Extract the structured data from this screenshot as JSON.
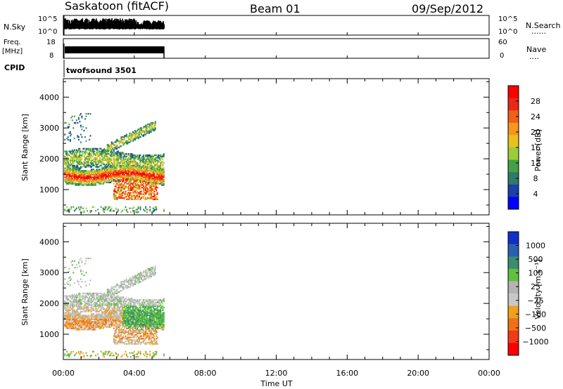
{
  "header": {
    "station": "Saskatoon (fitACF)",
    "beam": "Beam 01",
    "date": "09/Sep/2012"
  },
  "strips": {
    "nsky_label": "N.Sky",
    "nsky_ticks": [
      "10^5",
      "10^0"
    ],
    "nsky_right_ticks": [
      "10^5",
      "10^0"
    ],
    "nsearch_label": "N.Search",
    "freq_label_line1": "Freq.",
    "freq_label_line2": "[MHz]",
    "freq_ticks": [
      "18",
      "8"
    ],
    "nave_ticks": [
      "60",
      "0"
    ],
    "nave_label": "Nave",
    "cpid_label": "CPID",
    "cpid_value": "twofsound 3501",
    "legend_dots": "......",
    "legend_dots_short": "...."
  },
  "chart_data": [
    {
      "type": "heatmap",
      "title": "",
      "ylabel": "Slant Range [km]",
      "xlabel": "",
      "x_range_hours": [
        0,
        24
      ],
      "ylim": [
        180,
        4600
      ],
      "yticks": [
        1000,
        2000,
        3000,
        4000
      ],
      "colorbar": {
        "label": "Power [dB]",
        "ticks": [
          "4",
          "8",
          "12",
          "16",
          "20",
          "24",
          "28"
        ],
        "range": [
          0,
          32
        ],
        "colors": [
          "#0000ff",
          "#1c3fa8",
          "#2f7a6a",
          "#45a048",
          "#9ccc3c",
          "#e8c020",
          "#f6961c",
          "#f06018",
          "#e82818",
          "#ff0000"
        ]
      },
      "data_extent_hours": [
        0.05,
        5.65
      ]
    },
    {
      "type": "heatmap",
      "title": "",
      "ylabel": "Slant Range [km]",
      "xlabel": "",
      "x_range_hours": [
        0,
        24
      ],
      "ylim": [
        180,
        4600
      ],
      "yticks": [
        1000,
        2000,
        3000,
        4000
      ],
      "colorbar": {
        "label": "Velocity [m s⁻¹]",
        "ticks": [
          "1000",
          "500",
          "100",
          "25",
          "−25",
          "−100",
          "−500",
          "−1000"
        ],
        "colors": [
          "#1030c8",
          "#2a60b0",
          "#3c8c70",
          "#60c040",
          "#b4b4b4",
          "#c8c8c8",
          "#f0a020",
          "#f07018",
          "#f03a18",
          "#ff0000"
        ]
      },
      "data_extent_hours": [
        0.05,
        5.65
      ]
    }
  ],
  "time_axis": {
    "label": "Time UT",
    "ticks": [
      "00:00",
      "04:00",
      "08:00",
      "12:00",
      "16:00",
      "20:00",
      "00:00"
    ]
  }
}
